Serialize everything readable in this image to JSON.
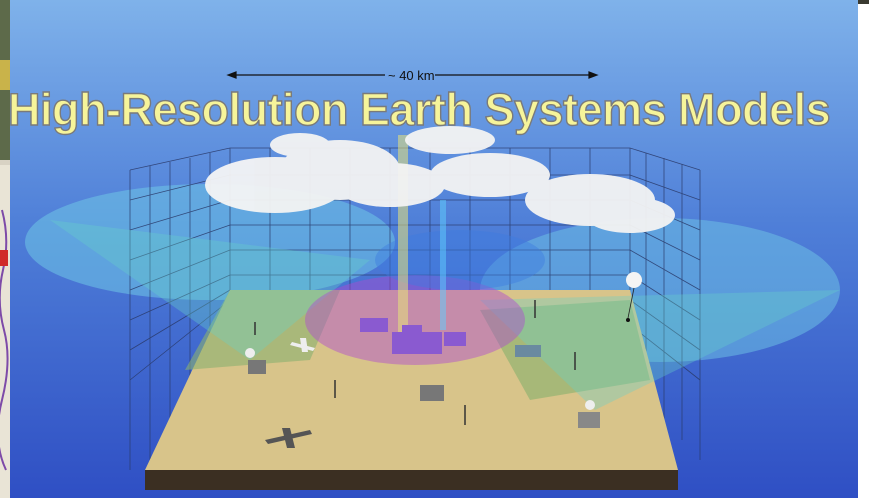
{
  "slide": {
    "title": "High-Resolution Earth Systems Models",
    "scale_label": "~ 40 km"
  },
  "colors": {
    "sky_top": "#7fb2ea",
    "sky_bottom": "#2f4fc4",
    "title_fill": "#f6f49a",
    "terrain": "#d8c48a",
    "grid_lines": "#2a3a6a"
  },
  "icons": [
    "radar-cone",
    "cloud",
    "aircraft",
    "weather-balloon",
    "sensor-mast",
    "instrument-building"
  ]
}
